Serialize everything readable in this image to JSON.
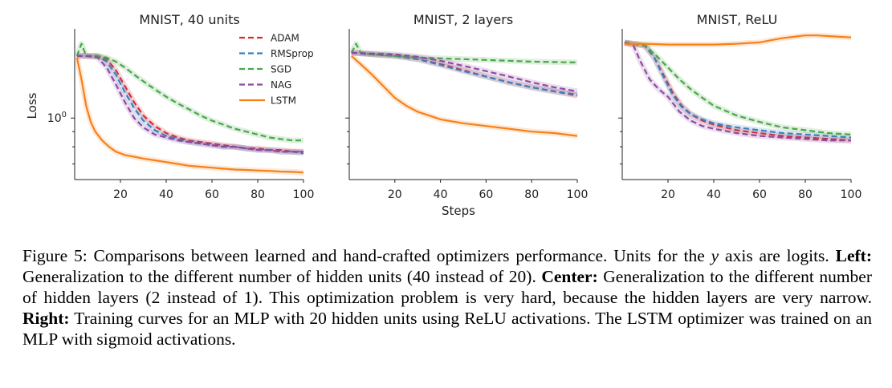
{
  "colors": {
    "ADAM": "#e0282e",
    "RMSprop": "#3a7fbf",
    "SGD": "#4aa64a",
    "NAG": "#8e4aa0",
    "LSTM": "#f7801a",
    "axis": "#222222"
  },
  "legend": [
    {
      "name": "ADAM",
      "dash": "dashed"
    },
    {
      "name": "RMSprop",
      "dash": "dashed"
    },
    {
      "name": "SGD",
      "dash": "dashed"
    },
    {
      "name": "NAG",
      "dash": "dashed"
    },
    {
      "name": "LSTM",
      "dash": "solid"
    }
  ],
  "chart_data": [
    {
      "type": "line",
      "title": "MNIST, 40 units",
      "xlabel": "",
      "ylabel": "Loss",
      "yscale": "log",
      "yticks": [
        "10^0"
      ],
      "xticks": [
        20,
        40,
        60,
        80,
        100
      ],
      "xlim": [
        0,
        100
      ],
      "ylim": [
        0.6,
        2.0
      ],
      "legend_position": "top-right",
      "series": [
        {
          "name": "ADAM",
          "x": [
            1,
            5,
            10,
            14,
            18,
            22,
            26,
            30,
            35,
            40,
            45,
            50,
            55,
            60,
            65,
            70,
            75,
            80,
            85,
            90,
            95,
            100
          ],
          "y": [
            1.62,
            1.62,
            1.62,
            1.58,
            1.45,
            1.28,
            1.13,
            1.02,
            0.94,
            0.89,
            0.86,
            0.84,
            0.83,
            0.82,
            0.81,
            0.8,
            0.79,
            0.79,
            0.78,
            0.78,
            0.77,
            0.77
          ]
        },
        {
          "name": "RMSprop",
          "x": [
            1,
            5,
            10,
            14,
            18,
            22,
            26,
            30,
            35,
            40,
            45,
            50,
            55,
            60,
            65,
            70,
            75,
            80,
            85,
            90,
            95,
            100
          ],
          "y": [
            1.62,
            1.62,
            1.62,
            1.55,
            1.4,
            1.22,
            1.08,
            0.98,
            0.91,
            0.87,
            0.85,
            0.83,
            0.82,
            0.81,
            0.8,
            0.8,
            0.79,
            0.78,
            0.78,
            0.77,
            0.77,
            0.76
          ]
        },
        {
          "name": "SGD",
          "x": [
            1,
            3,
            5,
            10,
            14,
            18,
            22,
            26,
            30,
            35,
            40,
            45,
            50,
            55,
            60,
            65,
            70,
            75,
            80,
            85,
            90,
            95,
            100
          ],
          "y": [
            1.62,
            1.78,
            1.62,
            1.62,
            1.6,
            1.55,
            1.48,
            1.4,
            1.33,
            1.25,
            1.18,
            1.12,
            1.07,
            1.02,
            0.98,
            0.95,
            0.92,
            0.9,
            0.88,
            0.86,
            0.85,
            0.84,
            0.84
          ]
        },
        {
          "name": "NAG",
          "x": [
            1,
            5,
            10,
            14,
            18,
            22,
            26,
            30,
            35,
            40,
            45,
            50,
            55,
            60,
            65,
            70,
            75,
            80,
            85,
            90,
            95,
            100
          ],
          "y": [
            1.62,
            1.62,
            1.6,
            1.48,
            1.3,
            1.13,
            1.0,
            0.93,
            0.88,
            0.86,
            0.84,
            0.83,
            0.82,
            0.81,
            0.8,
            0.8,
            0.79,
            0.78,
            0.78,
            0.77,
            0.77,
            0.77
          ]
        },
        {
          "name": "LSTM",
          "x": [
            1,
            3,
            5,
            7,
            9,
            12,
            15,
            18,
            22,
            26,
            30,
            35,
            40,
            45,
            50,
            55,
            60,
            65,
            70,
            75,
            80,
            85,
            90,
            95,
            100
          ],
          "y": [
            1.6,
            1.35,
            1.1,
            0.97,
            0.9,
            0.84,
            0.8,
            0.77,
            0.75,
            0.74,
            0.73,
            0.72,
            0.71,
            0.7,
            0.69,
            0.685,
            0.68,
            0.675,
            0.67,
            0.668,
            0.665,
            0.663,
            0.66,
            0.658,
            0.655
          ]
        }
      ]
    },
    {
      "type": "line",
      "title": "MNIST, 2 layers",
      "xlabel": "Steps",
      "ylabel": "",
      "xticks": [
        20,
        40,
        60,
        80,
        100
      ],
      "xlim": [
        0,
        100
      ],
      "series": [
        {
          "name": "ADAM",
          "x": [
            1,
            10,
            20,
            30,
            40,
            50,
            60,
            70,
            80,
            90,
            100
          ],
          "y": [
            1.66,
            1.64,
            1.62,
            1.58,
            1.52,
            1.45,
            1.38,
            1.32,
            1.27,
            1.23,
            1.19
          ]
        },
        {
          "name": "RMSprop",
          "x": [
            1,
            10,
            20,
            30,
            40,
            50,
            60,
            70,
            80,
            90,
            100
          ],
          "y": [
            1.66,
            1.64,
            1.62,
            1.58,
            1.51,
            1.44,
            1.38,
            1.32,
            1.27,
            1.23,
            1.2
          ]
        },
        {
          "name": "SGD",
          "x": [
            1,
            3,
            5,
            10,
            20,
            30,
            40,
            50,
            60,
            70,
            80,
            90,
            100
          ],
          "y": [
            1.66,
            1.78,
            1.66,
            1.64,
            1.62,
            1.6,
            1.59,
            1.58,
            1.57,
            1.56,
            1.55,
            1.545,
            1.54
          ]
        },
        {
          "name": "NAG",
          "x": [
            1,
            10,
            20,
            30,
            40,
            50,
            60,
            70,
            80,
            90,
            100
          ],
          "y": [
            1.66,
            1.65,
            1.64,
            1.61,
            1.56,
            1.5,
            1.44,
            1.38,
            1.32,
            1.27,
            1.23
          ]
        },
        {
          "name": "LSTM",
          "x": [
            1,
            5,
            10,
            15,
            20,
            25,
            30,
            35,
            40,
            50,
            60,
            70,
            80,
            90,
            100
          ],
          "y": [
            1.62,
            1.52,
            1.4,
            1.28,
            1.17,
            1.1,
            1.05,
            1.02,
            0.99,
            0.96,
            0.94,
            0.92,
            0.9,
            0.89,
            0.87
          ]
        }
      ]
    },
    {
      "type": "line",
      "title": "MNIST, ReLU",
      "xlabel": "",
      "ylabel": "",
      "xticks": [
        20,
        40,
        60,
        80,
        100
      ],
      "xlim": [
        0,
        100
      ],
      "series": [
        {
          "name": "ADAM",
          "x": [
            1,
            5,
            10,
            14,
            18,
            22,
            26,
            30,
            35,
            40,
            50,
            60,
            70,
            80,
            90,
            100
          ],
          "y": [
            1.8,
            1.78,
            1.75,
            1.6,
            1.4,
            1.22,
            1.1,
            1.03,
            0.98,
            0.95,
            0.91,
            0.89,
            0.87,
            0.86,
            0.85,
            0.84
          ]
        },
        {
          "name": "RMSprop",
          "x": [
            1,
            5,
            10,
            14,
            18,
            22,
            26,
            30,
            35,
            40,
            50,
            60,
            70,
            80,
            90,
            100
          ],
          "y": [
            1.8,
            1.78,
            1.75,
            1.6,
            1.38,
            1.2,
            1.09,
            1.03,
            0.99,
            0.96,
            0.93,
            0.91,
            0.89,
            0.88,
            0.87,
            0.86
          ]
        },
        {
          "name": "SGD",
          "x": [
            1,
            5,
            10,
            15,
            20,
            25,
            30,
            35,
            40,
            50,
            60,
            70,
            80,
            90,
            100
          ],
          "y": [
            1.8,
            1.78,
            1.76,
            1.62,
            1.48,
            1.35,
            1.25,
            1.17,
            1.1,
            1.02,
            0.97,
            0.93,
            0.91,
            0.89,
            0.88
          ]
        },
        {
          "name": "NAG",
          "x": [
            1,
            5,
            8,
            12,
            16,
            20,
            25,
            30,
            35,
            40,
            50,
            60,
            70,
            80,
            90,
            100
          ],
          "y": [
            1.8,
            1.75,
            1.55,
            1.35,
            1.25,
            1.18,
            1.05,
            0.98,
            0.94,
            0.92,
            0.89,
            0.87,
            0.86,
            0.85,
            0.84,
            0.84
          ]
        },
        {
          "name": "LSTM",
          "x": [
            1,
            10,
            20,
            30,
            40,
            50,
            60,
            65,
            70,
            75,
            80,
            85,
            90,
            95,
            100
          ],
          "y": [
            1.78,
            1.78,
            1.77,
            1.77,
            1.77,
            1.78,
            1.8,
            1.83,
            1.86,
            1.88,
            1.9,
            1.9,
            1.89,
            1.88,
            1.87
          ]
        }
      ]
    }
  ],
  "caption": {
    "figure_label": "Figure 5:",
    "intro": " Comparisons between learned and hand-crafted optimizers performance. Units for the ",
    "y_sym": "y",
    "intro2": " axis are logits. ",
    "left_label": "Left:",
    "left_text": " Generalization to the different number of hidden units (40 instead of 20). ",
    "center_label": "Center:",
    "center_text": " Generalization to the different number of hidden layers (2 instead of 1). This optimization problem is very hard, because the hidden layers are very narrow. ",
    "right_label": "Right:",
    "right_text": " Training curves for an MLP with 20 hidden units using ReLU activations. The LSTM optimizer was trained on an MLP with sigmoid activations."
  }
}
